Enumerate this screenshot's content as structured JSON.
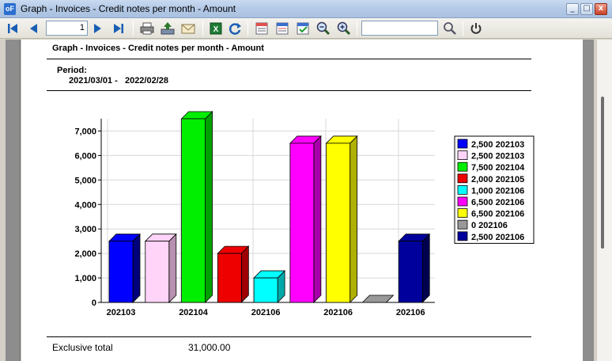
{
  "window": {
    "title": "Graph - Invoices - Credit notes per month - Amount",
    "app_icon": "oF",
    "min_glyph": "_",
    "max_glyph": "□",
    "close_glyph": "x"
  },
  "toolbar": {
    "page_number": "1",
    "search_value": "",
    "icons": [
      "first-page-icon",
      "previous-page-icon",
      "next-page-icon",
      "last-page-icon",
      "print-icon",
      "export-icon",
      "email-icon",
      "excel-icon",
      "refresh-icon",
      "layout-icon-1",
      "layout-icon-2",
      "layout-check-icon",
      "zoom-out-icon",
      "zoom-in-icon",
      "search-icon",
      "power-icon"
    ]
  },
  "report": {
    "title": "Graph - Invoices - Credit notes per month - Amount",
    "period_label": "Period:",
    "period_from": "2021/03/01 -",
    "period_to": "2022/02/28",
    "total_label": "Exclusive total",
    "total_value": "31,000.00"
  },
  "chart_data": {
    "type": "bar",
    "style": "3d",
    "categories": [
      "202103",
      "202103",
      "202104",
      "202105",
      "202106",
      "202106",
      "202106",
      "202106",
      "202106"
    ],
    "x_tick_labels": [
      "202103",
      "202104",
      "202106",
      "202106",
      "202106"
    ],
    "x_tick_indices": [
      0,
      2,
      4,
      6,
      8
    ],
    "values": [
      2500,
      2500,
      7500,
      2000,
      1000,
      6500,
      6500,
      0,
      2500
    ],
    "colors": [
      "#0000ff",
      "#ffd4f8",
      "#00ee00",
      "#ee0000",
      "#00ffff",
      "#ff00ff",
      "#ffff00",
      "#999999",
      "#00009c"
    ],
    "side_colors": [
      "#00007a",
      "#b890b0",
      "#00a000",
      "#a00000",
      "#00a8a8",
      "#a800a8",
      "#b0b000",
      "#555555",
      "#000050"
    ],
    "legend": [
      "2,500 202103",
      "2,500 202103",
      "7,500 202104",
      "2,000 202105",
      "1,000 202106",
      "6,500 202106",
      "6,500 202106",
      "0 202106",
      "2,500 202106"
    ],
    "yticks": [
      0,
      1000,
      2000,
      3000,
      4000,
      5000,
      6000,
      7000
    ],
    "ytick_labels": [
      "0",
      "1,000",
      "2,000",
      "3,000",
      "4,000",
      "5,000",
      "6,000",
      "7,000"
    ],
    "ylim": [
      0,
      7500
    ],
    "grid": true,
    "legend_position": "right"
  }
}
